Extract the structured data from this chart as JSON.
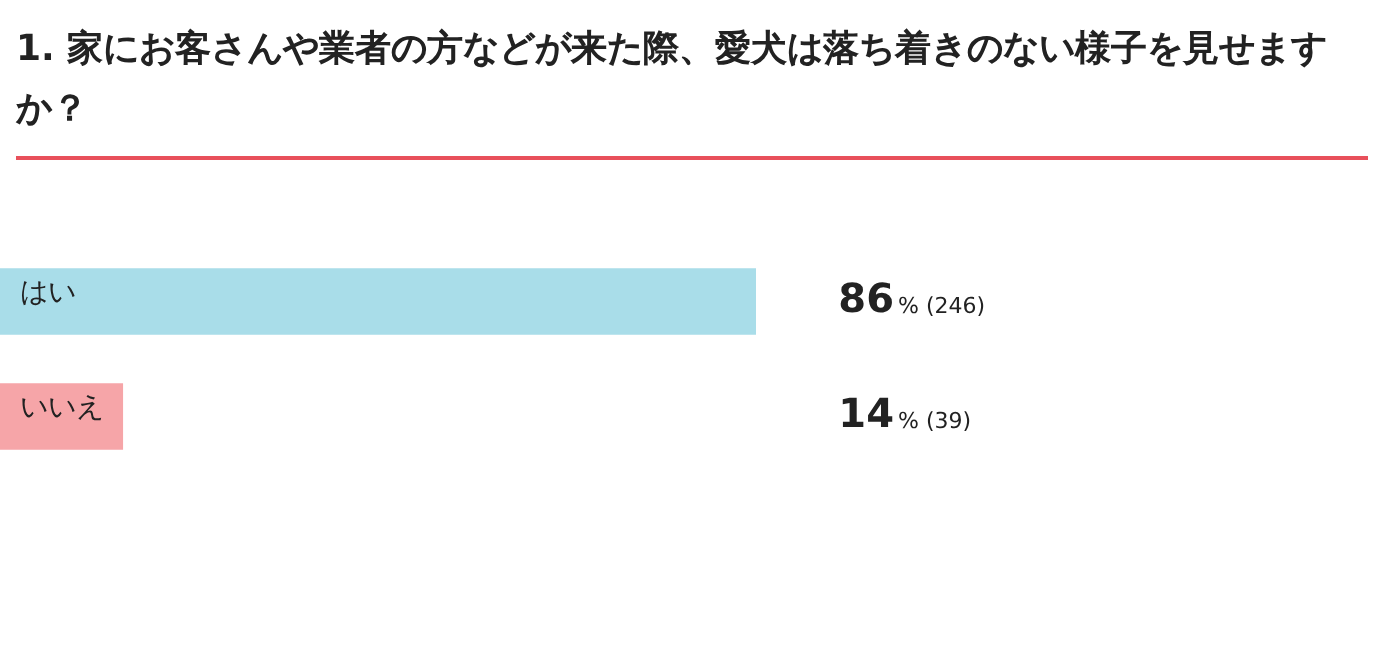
{
  "chart_data": {
    "type": "bar",
    "orientation": "horizontal",
    "title": "1. 家にお客さんや業者の方などが来た際、愛犬は落ち着きのない様子を見せますか？",
    "categories": [
      "はい",
      "いいえ"
    ],
    "values": [
      86,
      14
    ],
    "colors": [
      "#a9dde9",
      "#f6a5a8"
    ],
    "value_labels": [
      "86% (246)",
      "14% (39)"
    ],
    "legend": false
  }
}
